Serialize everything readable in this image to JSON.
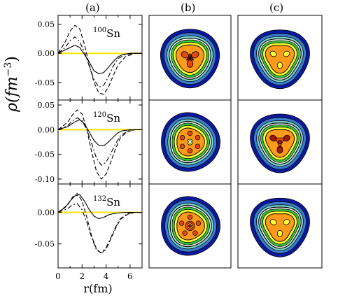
{
  "column_labels": [
    "(a)",
    "(b)",
    "(c)"
  ],
  "ylabel": {
    "base": "ρ(fm",
    "exp": "−3",
    "close": ")"
  },
  "xlabel": "r(fm)",
  "x_ticks": [
    "0",
    "2",
    "4",
    "6"
  ],
  "rows": [
    {
      "nucleus": {
        "mass": "100",
        "symbol": "Sn"
      },
      "y_ticks": [
        "0.05",
        "0.00",
        "-0.05"
      ],
      "ylim": [
        -0.08,
        0.065
      ],
      "tick_values": [
        0.05,
        0.0,
        -0.05
      ]
    },
    {
      "nucleus": {
        "mass": "120",
        "symbol": "Sn"
      },
      "y_ticks": [
        "0.05",
        "0.00",
        "-0.05",
        "-0.10"
      ],
      "ylim": [
        -0.11,
        0.06
      ],
      "tick_values": [
        0.05,
        0.0,
        -0.05,
        -0.1
      ]
    },
    {
      "nucleus": {
        "mass": "132",
        "symbol": "Sn"
      },
      "y_ticks": [
        "0.00",
        "-0.05"
      ],
      "ylim": [
        -0.088,
        0.045
      ],
      "tick_values": [
        0.0,
        -0.05
      ]
    }
  ],
  "chart_data": {
    "type": "line",
    "xlim": [
      0,
      7
    ],
    "panels": [
      {
        "nucleus": "100Sn",
        "series": [
          {
            "style": "solid",
            "x": [
              0,
              0.8,
              1.4,
              1.8,
              2.2,
              2.6,
              3.0,
              3.4,
              3.8,
              4.2,
              4.6,
              5.0,
              5.4,
              6.0,
              7.0
            ],
            "y": [
              0,
              0.008,
              0.014,
              0.01,
              -0.002,
              -0.015,
              -0.03,
              -0.035,
              -0.033,
              -0.024,
              -0.014,
              -0.006,
              -0.002,
              0,
              0
            ]
          },
          {
            "style": "dashed",
            "x": [
              0,
              0.6,
              1.0,
              1.4,
              1.8,
              2.2,
              2.6,
              3.0,
              3.4,
              3.8,
              4.2,
              4.6,
              5.0,
              5.6,
              6.4,
              7.0
            ],
            "y": [
              0,
              0.02,
              0.038,
              0.048,
              0.042,
              0.015,
              -0.02,
              -0.05,
              -0.068,
              -0.07,
              -0.058,
              -0.038,
              -0.02,
              -0.006,
              0,
              0
            ]
          },
          {
            "style": "dash-dot",
            "x": [
              0,
              0.6,
              1.0,
              1.4,
              1.8,
              2.2,
              2.6,
              3.0,
              3.4,
              3.8,
              4.2,
              4.6,
              5.0,
              5.6,
              6.4,
              7.0
            ],
            "y": [
              0,
              0.01,
              0.022,
              0.028,
              0.02,
              0.002,
              -0.022,
              -0.045,
              -0.058,
              -0.055,
              -0.04,
              -0.022,
              -0.009,
              -0.002,
              0,
              0
            ]
          }
        ]
      },
      {
        "nucleus": "120Sn",
        "series": [
          {
            "style": "solid",
            "x": [
              0,
              0.8,
              1.4,
              1.8,
              2.2,
              2.6,
              3.0,
              3.4,
              3.8,
              4.2,
              4.6,
              5.0,
              5.4,
              6.0,
              7.0
            ],
            "y": [
              0,
              0.006,
              0.016,
              0.02,
              0.012,
              -0.005,
              -0.022,
              -0.032,
              -0.033,
              -0.025,
              -0.015,
              -0.006,
              -0.002,
              0,
              0
            ]
          },
          {
            "style": "dashed",
            "x": [
              0,
              0.8,
              1.2,
              1.6,
              2.0,
              2.4,
              2.8,
              3.2,
              3.6,
              4.0,
              4.4,
              4.8,
              5.2,
              5.8,
              6.4,
              7.0
            ],
            "y": [
              0,
              0.015,
              0.03,
              0.04,
              0.032,
              0.0,
              -0.045,
              -0.085,
              -0.1,
              -0.09,
              -0.065,
              -0.038,
              -0.016,
              -0.004,
              0,
              0
            ]
          },
          {
            "style": "dash-dot",
            "x": [
              0,
              0.8,
              1.2,
              1.6,
              2.0,
              2.4,
              2.8,
              3.2,
              3.6,
              4.0,
              4.4,
              4.8,
              5.2,
              5.8,
              6.4,
              7.0
            ],
            "y": [
              0,
              0.008,
              0.018,
              0.024,
              0.018,
              0.0,
              -0.028,
              -0.058,
              -0.072,
              -0.066,
              -0.048,
              -0.028,
              -0.012,
              -0.003,
              0,
              0
            ]
          }
        ]
      },
      {
        "nucleus": "132Sn",
        "series": [
          {
            "style": "solid",
            "x": [
              0,
              0.6,
              1.0,
              1.4,
              1.8,
              2.2,
              2.6,
              3.0,
              3.4,
              3.8,
              4.2,
              4.6,
              5.0,
              5.6,
              6.4,
              7.0
            ],
            "y": [
              0,
              0.008,
              0.018,
              0.026,
              0.028,
              0.018,
              0.004,
              -0.006,
              -0.01,
              -0.008,
              -0.004,
              -0.002,
              -0.001,
              0,
              0,
              0
            ]
          },
          {
            "style": "dashed",
            "x": [
              0,
              0.8,
              1.2,
              1.6,
              2.0,
              2.4,
              2.8,
              3.2,
              3.6,
              4.0,
              4.4,
              4.8,
              5.2,
              5.8,
              6.4,
              7.0
            ],
            "y": [
              0,
              0.012,
              0.024,
              0.03,
              0.018,
              -0.008,
              -0.038,
              -0.058,
              -0.065,
              -0.058,
              -0.042,
              -0.025,
              -0.011,
              -0.003,
              0,
              0
            ]
          },
          {
            "style": "dash-dot",
            "x": [
              0,
              0.8,
              1.2,
              1.6,
              2.0,
              2.4,
              2.8,
              3.2,
              3.6,
              4.0,
              4.4,
              4.8,
              5.2,
              5.8,
              6.4,
              7.0
            ],
            "y": [
              0,
              0.006,
              0.012,
              0.014,
              0.004,
              -0.016,
              -0.04,
              -0.06,
              -0.064,
              -0.056,
              -0.04,
              -0.023,
              -0.01,
              -0.002,
              0,
              0
            ]
          }
        ]
      }
    ],
    "zero_line_color": "#ffe600"
  },
  "contour_colors": [
    "#0a1aa0",
    "#3a7fd0",
    "#7fd8d0",
    "#ffffff",
    "#3cc83c",
    "#ffff33",
    "#ff9a1a",
    "#e04a10",
    "#a01a0a"
  ]
}
